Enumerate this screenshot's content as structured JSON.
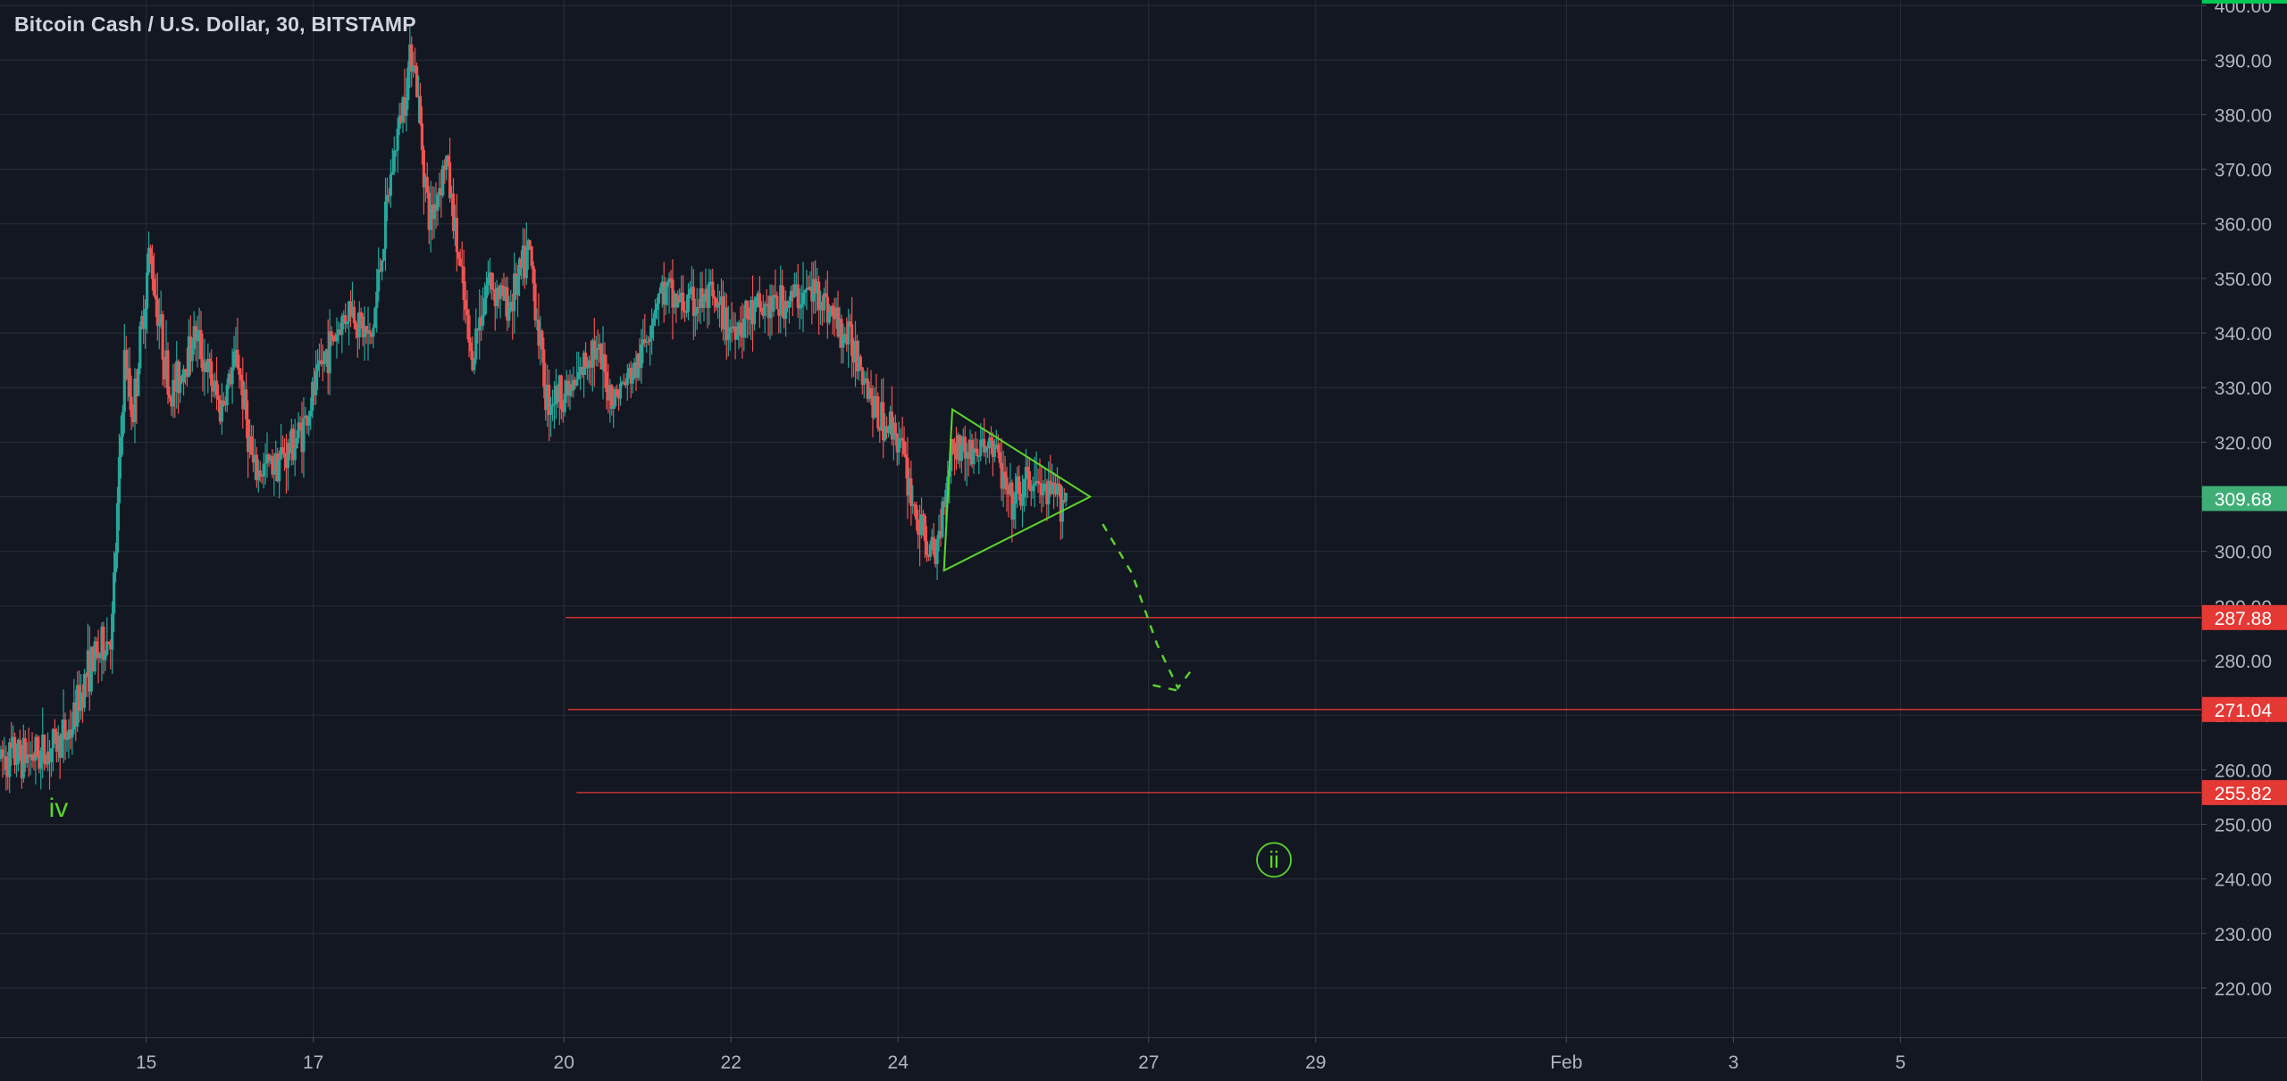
{
  "header": {
    "title": "Bitcoin Cash / U.S. Dollar, 30, BITSTAMP"
  },
  "colors": {
    "background": "#131722",
    "grid": "#2a2e39",
    "axis_text": "#b2b5be",
    "up": "#26a69a",
    "down": "#ef5350",
    "annotation": "#5cd62c",
    "level_line": "#e53935",
    "last_price_badge": "#3fae76",
    "top_badge": "#00c853"
  },
  "chart_data": {
    "type": "candlestick",
    "symbol": "Bitcoin Cash / U.S. Dollar",
    "interval": "30",
    "exchange": "BITSTAMP",
    "x_ticks": [
      "15",
      "17",
      "20",
      "22",
      "24",
      "27",
      "29",
      "Feb",
      "3",
      "5"
    ],
    "x_tick_days": [
      15,
      17,
      20,
      22,
      24,
      27,
      29,
      32,
      34,
      36
    ],
    "xlim_days": [
      13.25,
      39.6
    ],
    "y_ticks": [
      "220.00",
      "230.00",
      "240.00",
      "250.00",
      "260.00",
      "270.00",
      "280.00",
      "290.00",
      "300.00",
      "310.00",
      "320.00",
      "330.00",
      "340.00",
      "350.00",
      "360.00",
      "370.00",
      "380.00",
      "390.00",
      "400.00"
    ],
    "ylim": [
      211,
      401
    ],
    "grid": true,
    "last_price": 309.68,
    "last_price_label": "309.68",
    "price_path": [
      [
        13.25,
        262
      ],
      [
        13.8,
        263
      ],
      [
        14.1,
        267
      ],
      [
        14.3,
        278
      ],
      [
        14.6,
        285
      ],
      [
        14.75,
        335
      ],
      [
        14.85,
        325
      ],
      [
        15.05,
        355
      ],
      [
        15.3,
        328
      ],
      [
        15.6,
        340
      ],
      [
        15.9,
        326
      ],
      [
        16.1,
        336
      ],
      [
        16.3,
        314
      ],
      [
        16.7,
        318
      ],
      [
        16.9,
        323
      ],
      [
        17.15,
        336
      ],
      [
        17.45,
        345
      ],
      [
        17.7,
        338
      ],
      [
        17.95,
        370
      ],
      [
        18.2,
        393
      ],
      [
        18.4,
        360
      ],
      [
        18.6,
        372
      ],
      [
        18.9,
        335
      ],
      [
        19.1,
        350
      ],
      [
        19.35,
        345
      ],
      [
        19.6,
        355
      ],
      [
        19.8,
        328
      ],
      [
        20.15,
        330
      ],
      [
        20.35,
        338
      ],
      [
        20.6,
        328
      ],
      [
        20.9,
        334
      ],
      [
        21.15,
        348
      ],
      [
        21.45,
        345
      ],
      [
        21.75,
        346
      ],
      [
        22.0,
        341
      ],
      [
        22.35,
        344
      ],
      [
        22.7,
        346
      ],
      [
        23.05,
        348
      ],
      [
        23.3,
        341
      ],
      [
        23.55,
        336
      ],
      [
        23.75,
        325
      ],
      [
        24.0,
        322
      ],
      [
        24.25,
        305
      ],
      [
        24.45,
        298
      ],
      [
        24.65,
        320
      ],
      [
        24.9,
        318
      ],
      [
        25.15,
        320
      ],
      [
        25.35,
        308
      ],
      [
        25.6,
        313
      ],
      [
        25.8,
        310
      ],
      [
        26.0,
        310
      ]
    ],
    "annotations": [
      {
        "type": "text",
        "text": "iv",
        "day": 13.95,
        "price": 253
      },
      {
        "type": "circled-text",
        "text": "ii",
        "day": 28.5,
        "price": 243.5
      },
      {
        "type": "triangle",
        "points": [
          [
            24.55,
            296.5
          ],
          [
            24.65,
            326
          ],
          [
            26.3,
            310
          ]
        ]
      },
      {
        "type": "dashed-path",
        "points": [
          [
            26.45,
            305
          ],
          [
            26.8,
            296
          ],
          [
            27.1,
            283
          ],
          [
            27.35,
            275
          ],
          [
            27.55,
            279
          ]
        ]
      },
      {
        "type": "dashed-path",
        "points": [
          [
            27.05,
            275.5
          ],
          [
            27.35,
            274.5
          ]
        ]
      }
    ],
    "levels": [
      {
        "price": 287.88,
        "label": "287.88",
        "start_day": 20.02
      },
      {
        "price": 271.04,
        "label": "271.04",
        "start_day": 20.05
      },
      {
        "price": 255.82,
        "label": "255.82",
        "start_day": 20.15
      }
    ]
  }
}
